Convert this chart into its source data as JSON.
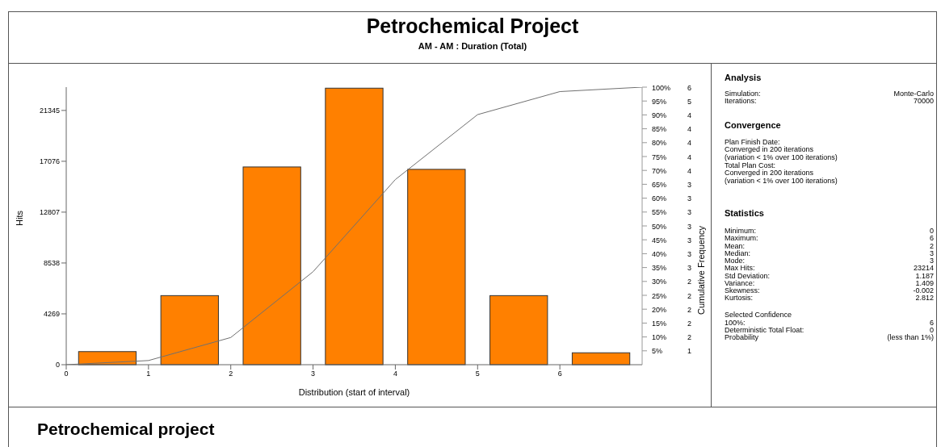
{
  "chart_data": {
    "type": "histogram",
    "title": "Petrochemical Project",
    "subtitle": "AM - AM : Duration (Total)",
    "xlabel": "Distribution (start of interval)",
    "ylabel": "Hits",
    "y2label": "Cumulative Frequency",
    "bins": [
      0,
      1,
      2,
      3,
      4,
      5,
      6,
      7
    ],
    "series": [
      {
        "color": "#ff8000",
        "values": [
          1100,
          5800,
          16600,
          23214,
          16400,
          5800,
          1000
        ]
      },
      {
        "type": "line",
        "axis": "y2",
        "color": "#707070",
        "x": [
          0,
          1,
          2,
          3,
          4,
          5,
          6,
          7
        ],
        "values": [
          0,
          1.5,
          9.8,
          33.5,
          66.7,
          90.1,
          98.4,
          100
        ]
      }
    ],
    "xlim": [
      0,
      7
    ],
    "xticks": [
      0,
      1,
      2,
      3,
      4,
      5,
      6
    ],
    "ylim": [
      0,
      23300
    ],
    "yticks": [
      0,
      4269,
      8538,
      12807,
      17076,
      21345
    ],
    "y2lim": [
      0,
      100
    ],
    "y2ticks": [
      {
        "value": 5,
        "label": "5%"
      },
      {
        "value": 10,
        "label": "10%"
      },
      {
        "value": 15,
        "label": "15%"
      },
      {
        "value": 20,
        "label": "20%"
      },
      {
        "value": 25,
        "label": "25%"
      },
      {
        "value": 30,
        "label": "30%"
      },
      {
        "value": 35,
        "label": "35%"
      },
      {
        "value": 40,
        "label": "40%"
      },
      {
        "value": 45,
        "label": "45%"
      },
      {
        "value": 50,
        "label": "50%"
      },
      {
        "value": 55,
        "label": "55%"
      },
      {
        "value": 60,
        "label": "60%"
      },
      {
        "value": 65,
        "label": "65%"
      },
      {
        "value": 70,
        "label": "70%"
      },
      {
        "value": 75,
        "label": "75%"
      },
      {
        "value": 80,
        "label": "80%"
      },
      {
        "value": 85,
        "label": "85%"
      },
      {
        "value": 90,
        "label": "90%"
      },
      {
        "value": 95,
        "label": "95%"
      },
      {
        "value": 100,
        "label": "100%"
      }
    ],
    "grid": false,
    "legend": false,
    "marker": "none",
    "annotations": [
      "Analysis",
      "Simulation:",
      "Monte-Carlo",
      "Iterations:",
      "70000",
      "Convergence",
      "Plan Finish Date:",
      "Converged in 200 iterations",
      "(variation < 1% over 100 iterations)",
      "Total Plan Cost:",
      "Converged in 200 iterations",
      "(variation < 1% over 100 iterations)",
      "Statistics",
      "Minimum:",
      "0",
      "Maximum:",
      "6",
      "Mean:",
      "2",
      "Median:",
      "3",
      "Mode:",
      "3",
      "Max Hits:",
      "23214",
      "Std Deviation:",
      "1.187",
      "Variance:",
      "1.409",
      "Skewness:",
      "-0.002",
      "Kurtosis:",
      "2.812",
      "Selected Confidence",
      "100%:",
      "6",
      "Deterministic Total Float:",
      "0",
      "Probability",
      "(less than 1%)",
      "Petrochemical project",
      "1",
      "2",
      "2",
      "2",
      "2",
      "2",
      "3",
      "3",
      "3",
      "3",
      "3",
      "3",
      "3",
      "4",
      "4",
      "4",
      "4",
      "4",
      "5",
      "6"
    ]
  }
}
